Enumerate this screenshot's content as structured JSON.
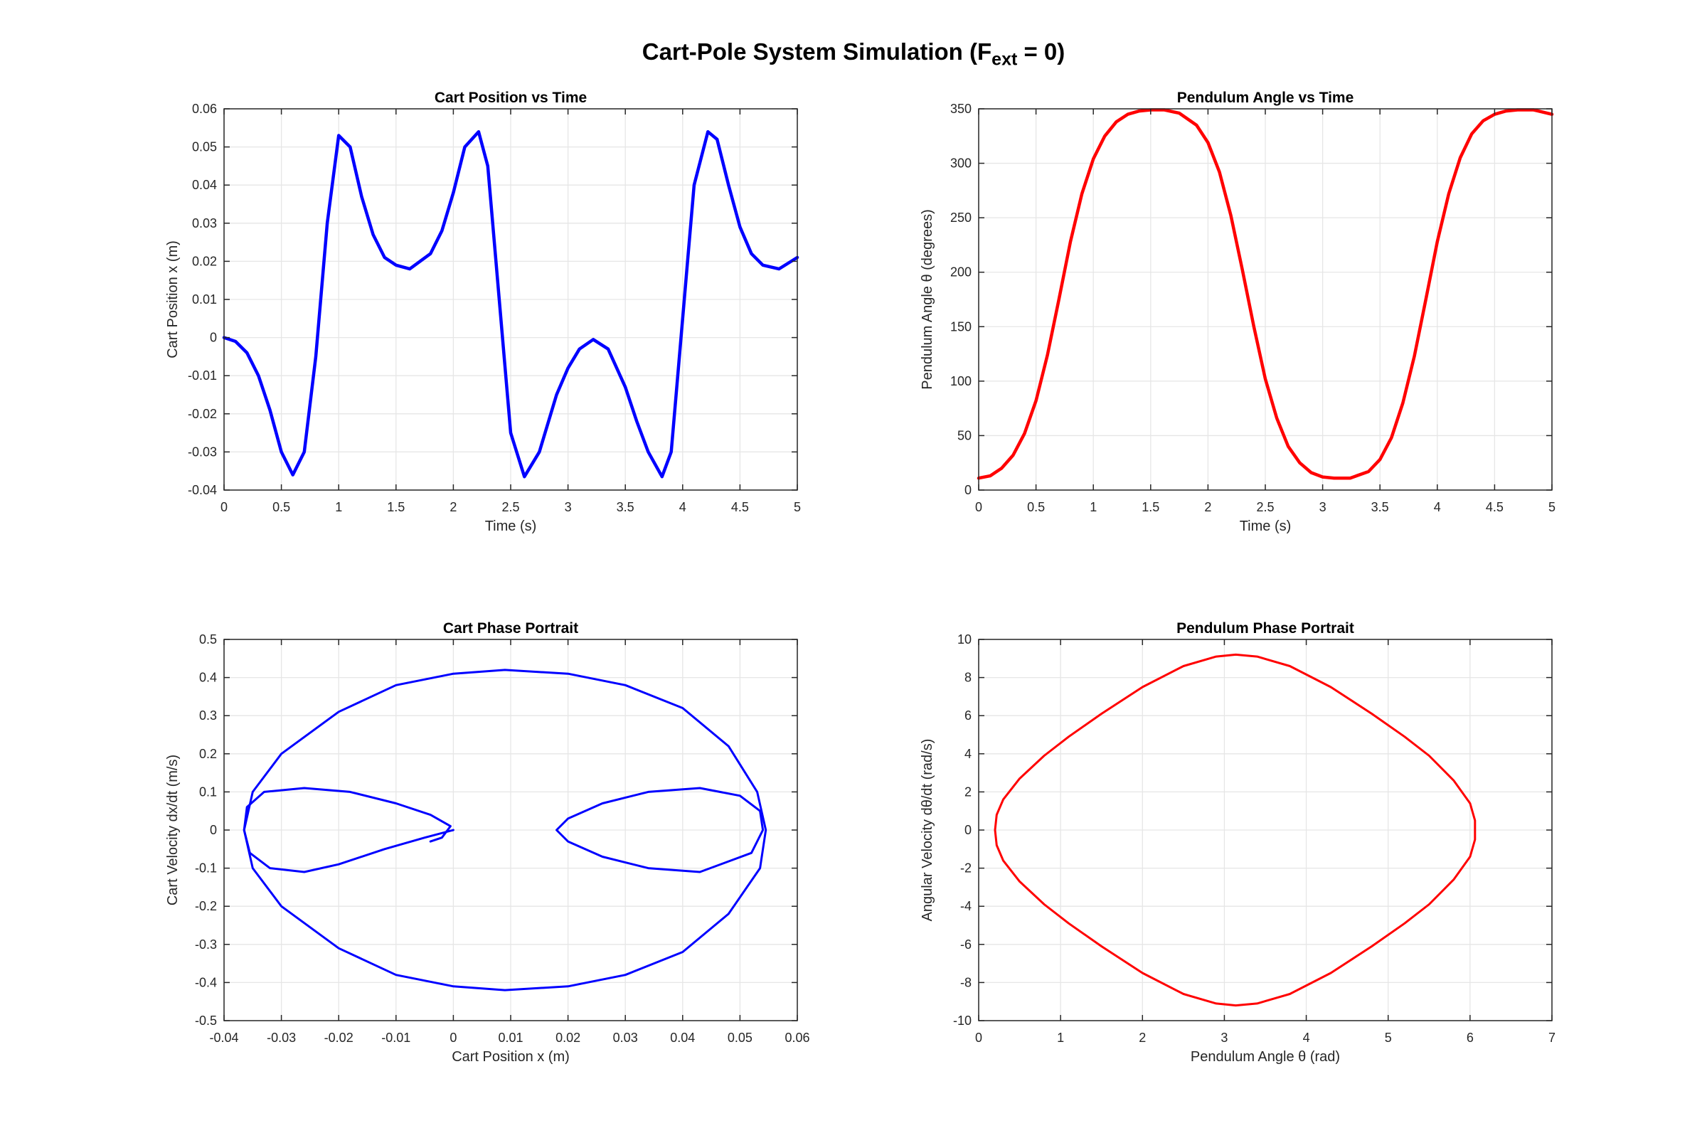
{
  "figure": {
    "title_main": "Cart-Pole System Simulation (F",
    "title_sub": "ext",
    "title_tail": " = 0)"
  },
  "chart_data": [
    {
      "id": "cart-position",
      "type": "line",
      "title": "Cart Position vs Time",
      "xlabel": "Time (s)",
      "ylabel": "Cart Position x (m)",
      "xlim": [
        0,
        5
      ],
      "ylim": [
        -0.04,
        0.06
      ],
      "xticks": [
        0,
        0.5,
        1,
        1.5,
        2,
        2.5,
        3,
        3.5,
        4,
        4.5,
        5
      ],
      "xtick_labels": [
        "0",
        "0.5",
        "1",
        "1.5",
        "2",
        "2.5",
        "3",
        "3.5",
        "4",
        "4.5",
        "5"
      ],
      "yticks": [
        -0.04,
        -0.03,
        -0.02,
        -0.01,
        0,
        0.01,
        0.02,
        0.03,
        0.04,
        0.05,
        0.06
      ],
      "ytick_labels": [
        "-0.04",
        "-0.03",
        "-0.02",
        "-0.01",
        "0",
        "0.01",
        "0.02",
        "0.03",
        "0.04",
        "0.05",
        "0.06"
      ],
      "grid": true,
      "color": "#0000ff",
      "line_weight": "thick",
      "series": [
        {
          "x": [
            0,
            0.1,
            0.2,
            0.3,
            0.4,
            0.5,
            0.6,
            0.7,
            0.8,
            0.9,
            1.0,
            1.1,
            1.2,
            1.3,
            1.4,
            1.5,
            1.62,
            1.8,
            1.9,
            2.0,
            2.1,
            2.22,
            2.3,
            2.4,
            2.5,
            2.62,
            2.75,
            2.9,
            3.0,
            3.1,
            3.22,
            3.35,
            3.5,
            3.6,
            3.7,
            3.82,
            3.9,
            4.0,
            4.1,
            4.22,
            4.3,
            4.4,
            4.5,
            4.6,
            4.7,
            4.84,
            5.0
          ],
          "y": [
            0,
            -0.001,
            -0.004,
            -0.01,
            -0.019,
            -0.03,
            -0.036,
            -0.03,
            -0.005,
            0.03,
            0.053,
            0.05,
            0.037,
            0.027,
            0.021,
            0.019,
            0.018,
            0.022,
            0.028,
            0.038,
            0.05,
            0.054,
            0.045,
            0.01,
            -0.025,
            -0.0365,
            -0.03,
            -0.015,
            -0.008,
            -0.003,
            -0.0005,
            -0.003,
            -0.013,
            -0.022,
            -0.03,
            -0.0365,
            -0.03,
            0.005,
            0.04,
            0.054,
            0.052,
            0.04,
            0.029,
            0.022,
            0.019,
            0.018,
            0.021
          ]
        }
      ]
    },
    {
      "id": "pendulum-angle",
      "type": "line",
      "title": "Pendulum Angle vs Time",
      "xlabel": "Time (s)",
      "ylabel": "Pendulum Angle θ (degrees)",
      "xlim": [
        0,
        5
      ],
      "ylim": [
        0,
        350
      ],
      "xticks": [
        0,
        0.5,
        1,
        1.5,
        2,
        2.5,
        3,
        3.5,
        4,
        4.5,
        5
      ],
      "xtick_labels": [
        "0",
        "0.5",
        "1",
        "1.5",
        "2",
        "2.5",
        "3",
        "3.5",
        "4",
        "4.5",
        "5"
      ],
      "yticks": [
        0,
        50,
        100,
        150,
        200,
        250,
        300,
        350
      ],
      "ytick_labels": [
        "0",
        "50",
        "100",
        "150",
        "200",
        "250",
        "300",
        "350"
      ],
      "grid": true,
      "color": "#ff0000",
      "line_weight": "thick",
      "series": [
        {
          "x": [
            0,
            0.1,
            0.2,
            0.3,
            0.4,
            0.5,
            0.6,
            0.7,
            0.8,
            0.9,
            1.0,
            1.1,
            1.2,
            1.3,
            1.4,
            1.5,
            1.62,
            1.75,
            1.9,
            2.0,
            2.1,
            2.2,
            2.3,
            2.4,
            2.5,
            2.6,
            2.7,
            2.8,
            2.9,
            3.0,
            3.1,
            3.24,
            3.4,
            3.5,
            3.6,
            3.7,
            3.8,
            3.9,
            4.0,
            4.1,
            4.2,
            4.3,
            4.4,
            4.5,
            4.6,
            4.7,
            4.84,
            5.0
          ],
          "y": [
            11,
            13,
            20,
            32,
            52,
            82,
            124,
            175,
            228,
            272,
            304,
            325,
            338,
            345,
            348,
            349,
            349,
            346,
            335,
            319,
            292,
            252,
            202,
            150,
            102,
            66,
            40,
            25,
            16,
            12,
            11,
            11,
            17,
            28,
            48,
            80,
            123,
            175,
            228,
            272,
            305,
            327,
            339,
            345,
            348,
            349,
            349,
            345
          ]
        }
      ]
    },
    {
      "id": "cart-phase",
      "type": "line",
      "title": "Cart Phase Portrait",
      "xlabel": "Cart Position x (m)",
      "ylabel": "Cart Velocity dx/dt (m/s)",
      "xlim": [
        -0.04,
        0.06
      ],
      "ylim": [
        -0.5,
        0.5
      ],
      "xticks": [
        -0.04,
        -0.03,
        -0.02,
        -0.01,
        0,
        0.01,
        0.02,
        0.03,
        0.04,
        0.05,
        0.06
      ],
      "xtick_labels": [
        "-0.04",
        "-0.03",
        "-0.02",
        "-0.01",
        "0",
        "0.01",
        "0.02",
        "0.03",
        "0.04",
        "0.05",
        "0.06"
      ],
      "yticks": [
        -0.5,
        -0.4,
        -0.3,
        -0.2,
        -0.1,
        0,
        0.1,
        0.2,
        0.3,
        0.4,
        0.5
      ],
      "ytick_labels": [
        "-0.5",
        "-0.4",
        "-0.3",
        "-0.2",
        "-0.1",
        "0",
        "0.1",
        "0.2",
        "0.3",
        "0.4",
        "0.5"
      ],
      "grid": true,
      "color": "#0000ff",
      "line_weight": "medium",
      "series": [
        {
          "x": [
            0,
            -0.005,
            -0.012,
            -0.02,
            -0.026,
            -0.032,
            -0.0355,
            -0.0365,
            -0.036,
            -0.033,
            -0.026,
            -0.018,
            -0.01,
            -0.004,
            -0.0005,
            -0.002,
            -0.004
          ],
          "y": [
            0,
            -0.02,
            -0.05,
            -0.09,
            -0.11,
            -0.1,
            -0.06,
            0,
            0.06,
            0.1,
            0.11,
            0.1,
            0.07,
            0.04,
            0.01,
            -0.02,
            -0.03
          ]
        },
        {
          "x": [
            0.018,
            0.02,
            0.026,
            0.034,
            0.043,
            0.05,
            0.0535,
            0.054,
            0.052,
            0.043,
            0.034,
            0.026,
            0.02,
            0.018
          ],
          "y": [
            0,
            0.03,
            0.07,
            0.1,
            0.11,
            0.09,
            0.05,
            0,
            -0.06,
            -0.11,
            -0.1,
            -0.07,
            -0.03,
            0
          ]
        },
        {
          "x": [
            -0.0365,
            -0.035,
            -0.03,
            -0.02,
            -0.01,
            0,
            0.009,
            0.02,
            0.03,
            0.04,
            0.048,
            0.053,
            0.0545,
            0.0535,
            0.048,
            0.04,
            0.03,
            0.02,
            0.009,
            0,
            -0.01,
            -0.02,
            -0.03,
            -0.035,
            -0.0365
          ],
          "y": [
            0,
            0.1,
            0.2,
            0.31,
            0.38,
            0.41,
            0.42,
            0.41,
            0.38,
            0.32,
            0.22,
            0.1,
            0,
            -0.1,
            -0.22,
            -0.32,
            -0.38,
            -0.41,
            -0.42,
            -0.41,
            -0.38,
            -0.31,
            -0.2,
            -0.1,
            0
          ]
        }
      ]
    },
    {
      "id": "pendulum-phase",
      "type": "line",
      "title": "Pendulum Phase Portrait",
      "xlabel": "Pendulum Angle θ (rad)",
      "ylabel": "Angular Velocity dθ/dt (rad/s)",
      "xlim": [
        0,
        7
      ],
      "ylim": [
        -10,
        10
      ],
      "xticks": [
        0,
        1,
        2,
        3,
        4,
        5,
        6,
        7
      ],
      "xtick_labels": [
        "0",
        "1",
        "2",
        "3",
        "4",
        "5",
        "6",
        "7"
      ],
      "yticks": [
        -10,
        -8,
        -6,
        -4,
        -2,
        0,
        2,
        4,
        6,
        8,
        10
      ],
      "ytick_labels": [
        "-10",
        "-8",
        "-6",
        "-4",
        "-2",
        "0",
        "2",
        "4",
        "6",
        "8",
        "10"
      ],
      "grid": true,
      "color": "#ff0000",
      "line_weight": "medium",
      "series": [
        {
          "x": [
            0.2,
            0.22,
            0.3,
            0.5,
            0.8,
            1.1,
            1.5,
            2.0,
            2.5,
            2.9,
            3.14,
            3.4,
            3.8,
            4.3,
            4.8,
            5.2,
            5.5,
            5.8,
            6.0,
            6.06,
            6.06,
            6.0,
            5.8,
            5.5,
            5.2,
            4.8,
            4.3,
            3.8,
            3.4,
            3.14,
            2.9,
            2.5,
            2.0,
            1.5,
            1.1,
            0.8,
            0.5,
            0.3,
            0.22,
            0.2
          ],
          "y": [
            0,
            0.8,
            1.6,
            2.7,
            3.9,
            4.9,
            6.1,
            7.5,
            8.6,
            9.1,
            9.2,
            9.1,
            8.6,
            7.5,
            6.1,
            4.9,
            3.9,
            2.6,
            1.4,
            0.5,
            -0.5,
            -1.4,
            -2.6,
            -3.9,
            -4.9,
            -6.1,
            -7.5,
            -8.6,
            -9.1,
            -9.2,
            -9.1,
            -8.6,
            -7.5,
            -6.1,
            -4.9,
            -3.9,
            -2.7,
            -1.6,
            -0.8,
            0
          ]
        }
      ]
    }
  ]
}
